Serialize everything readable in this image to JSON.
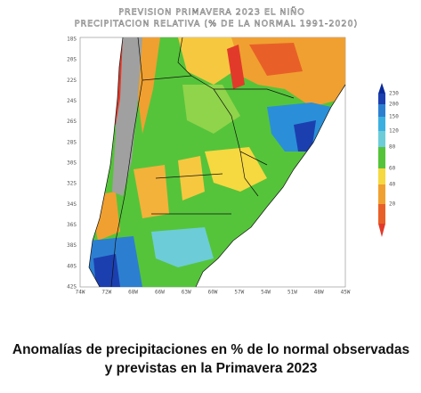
{
  "map": {
    "title": "PREVISION PRIMAVERA 2023 EL NIÑO",
    "subtitle": "PRECIPITACION RELATIVA (% DE LA NORMAL 1991-2020)",
    "lat_labels": [
      "18S",
      "20S",
      "22S",
      "24S",
      "26S",
      "28S",
      "30S",
      "32S",
      "34S",
      "36S",
      "38S",
      "40S",
      "42S"
    ],
    "lon_labels": [
      "74W",
      "72W",
      "68W",
      "66W",
      "63W",
      "60W",
      "57W",
      "54W",
      "51W",
      "48W",
      "45W"
    ]
  },
  "legend": {
    "labels": [
      "230",
      "200",
      "150",
      "120",
      "80",
      "60",
      "40",
      "20"
    ]
  },
  "caption": {
    "lines": [
      "Anomalías de precipitaciones en % de lo normal observadas",
      "y previstas en la Primavera 2023"
    ]
  }
}
